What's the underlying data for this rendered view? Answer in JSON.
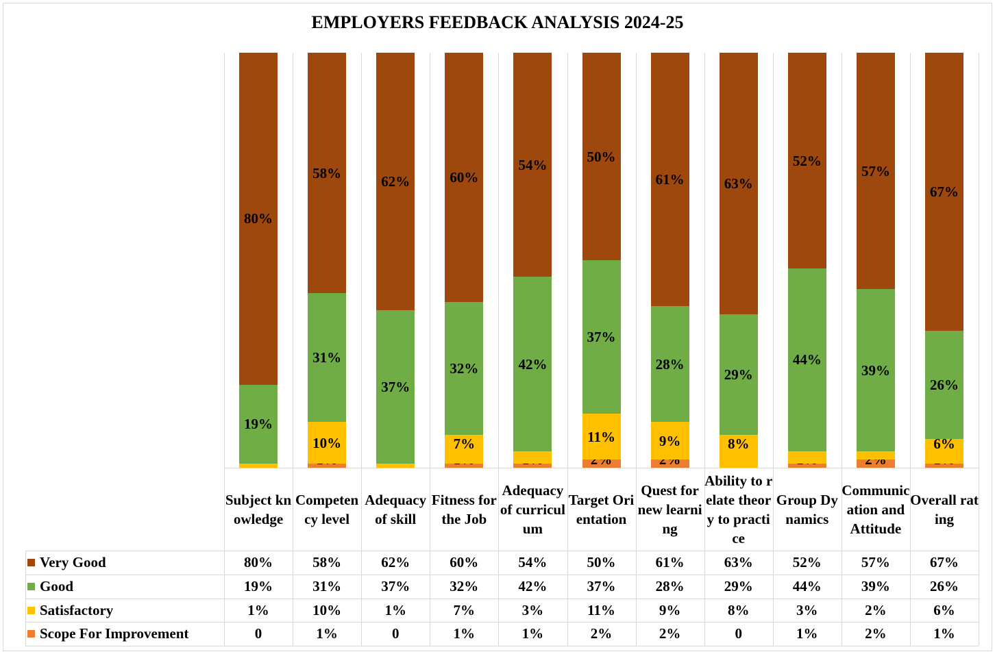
{
  "chart_data": {
    "type": "bar",
    "stacked": true,
    "title": "EMPLOYERS FEEDBACK ANALYSIS 2024-25",
    "xlabel": "",
    "ylabel": "",
    "ylim": [
      0,
      100
    ],
    "grid": false,
    "legend_placement": "data-table-left",
    "categories": [
      "Subject knowledge",
      "Competency level",
      "Adequacy of skill",
      "Fitness for the Job",
      "Adequacy of curriculum",
      "Target Orientation",
      "Quest for new learning",
      "Ability to relate theory to practice",
      "Group Dynamics",
      "Communication and Attitude",
      "Overall rating"
    ],
    "series": [
      {
        "name": "Scope For Improvement",
        "color": "#ed7d31",
        "values": [
          0,
          1,
          0,
          1,
          1,
          2,
          2,
          0,
          1,
          2,
          1
        ],
        "labels": [
          "0",
          "1%",
          "0",
          "1%",
          "1%",
          "2%",
          "2%",
          "0",
          "1%",
          "2%",
          "1%"
        ]
      },
      {
        "name": "Satisfactory",
        "color": "#ffc000",
        "values": [
          1,
          10,
          1,
          7,
          3,
          11,
          9,
          8,
          3,
          2,
          6
        ],
        "labels": [
          "1%",
          "10%",
          "1%",
          "7%",
          "3%",
          "11%",
          "9%",
          "8%",
          "3%",
          "2%",
          "6%"
        ]
      },
      {
        "name": "Good",
        "color": "#70ad47",
        "values": [
          19,
          31,
          37,
          32,
          42,
          37,
          28,
          29,
          44,
          39,
          26
        ],
        "labels": [
          "19%",
          "31%",
          "37%",
          "32%",
          "42%",
          "37%",
          "28%",
          "29%",
          "44%",
          "39%",
          "26%"
        ]
      },
      {
        "name": "Very Good",
        "color": "#9e480e",
        "values": [
          80,
          58,
          62,
          60,
          54,
          50,
          61,
          63,
          52,
          57,
          67
        ],
        "labels": [
          "80%",
          "58%",
          "62%",
          "60%",
          "54%",
          "50%",
          "61%",
          "63%",
          "52%",
          "57%",
          "67%"
        ]
      }
    ]
  }
}
